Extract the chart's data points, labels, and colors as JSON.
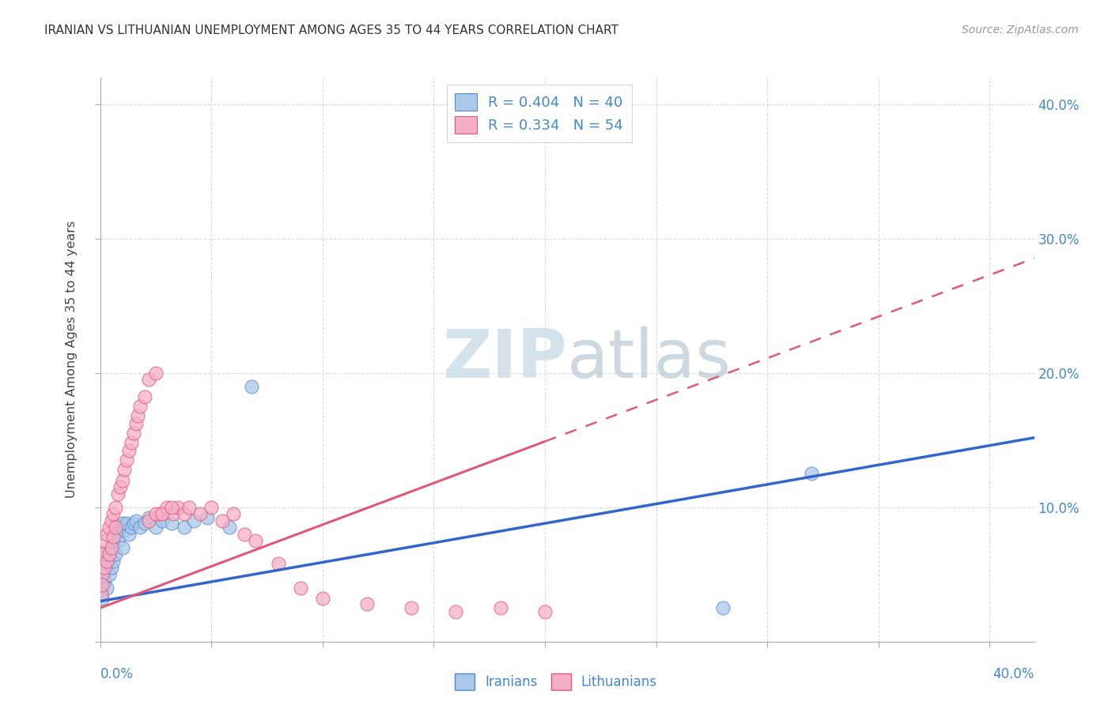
{
  "title": "IRANIAN VS LITHUANIAN UNEMPLOYMENT AMONG AGES 35 TO 44 YEARS CORRELATION CHART",
  "source": "Source: ZipAtlas.com",
  "ylabel": "Unemployment Among Ages 35 to 44 years",
  "ylim": [
    0.0,
    0.42
  ],
  "xlim": [
    0.0,
    0.42
  ],
  "yticks": [
    0.0,
    0.1,
    0.2,
    0.3,
    0.4
  ],
  "ytick_labels_right": [
    "",
    "10.0%",
    "20.0%",
    "30.0%",
    "40.0%"
  ],
  "xtick_label_left": "0.0%",
  "xtick_label_right": "40.0%",
  "iranian_fill": "#aac8e8",
  "iranian_edge": "#5588cc",
  "lithuanian_fill": "#f5b0c8",
  "lithuanian_edge": "#e05878",
  "iranian_line_color": "#3366cc",
  "lithuanian_line_color": "#e05878",
  "label_color": "#4488cc",
  "grid_color": "#cccccc",
  "watermark_color": "#ccdde8",
  "legend_R_N": [
    "R = 0.404   N = 40",
    "R = 0.334   N = 54"
  ],
  "bottom_legend": [
    "Iranians",
    "Lithuanians"
  ],
  "iranian_trend_intercept": 0.03,
  "iranian_trend_slope": 0.29,
  "lithuanian_trend_intercept": 0.025,
  "lithuanian_trend_slope": 0.62,
  "iranians_x": [
    0.0005,
    0.001,
    0.001,
    0.0015,
    0.002,
    0.002,
    0.003,
    0.003,
    0.003,
    0.004,
    0.004,
    0.005,
    0.005,
    0.006,
    0.006,
    0.007,
    0.007,
    0.008,
    0.009,
    0.01,
    0.01,
    0.011,
    0.012,
    0.013,
    0.014,
    0.015,
    0.016,
    0.018,
    0.02,
    0.022,
    0.025,
    0.028,
    0.032,
    0.038,
    0.042,
    0.048,
    0.058,
    0.068,
    0.28,
    0.32
  ],
  "iranians_y": [
    0.038,
    0.042,
    0.032,
    0.048,
    0.044,
    0.055,
    0.04,
    0.058,
    0.065,
    0.05,
    0.062,
    0.055,
    0.07,
    0.06,
    0.075,
    0.065,
    0.08,
    0.075,
    0.085,
    0.07,
    0.088,
    0.083,
    0.088,
    0.08,
    0.085,
    0.088,
    0.09,
    0.085,
    0.088,
    0.092,
    0.085,
    0.09,
    0.088,
    0.085,
    0.09,
    0.092,
    0.085,
    0.19,
    0.025,
    0.125
  ],
  "lithuanians_x": [
    0.0005,
    0.001,
    0.001,
    0.0015,
    0.002,
    0.002,
    0.003,
    0.003,
    0.004,
    0.004,
    0.005,
    0.005,
    0.006,
    0.006,
    0.007,
    0.007,
    0.008,
    0.009,
    0.01,
    0.011,
    0.012,
    0.013,
    0.014,
    0.015,
    0.016,
    0.017,
    0.018,
    0.02,
    0.022,
    0.025,
    0.027,
    0.03,
    0.033,
    0.035,
    0.038,
    0.04,
    0.045,
    0.05,
    0.055,
    0.06,
    0.065,
    0.07,
    0.08,
    0.09,
    0.1,
    0.12,
    0.14,
    0.16,
    0.18,
    0.2,
    0.022,
    0.025,
    0.028,
    0.032
  ],
  "lithuanians_y": [
    0.035,
    0.05,
    0.042,
    0.065,
    0.055,
    0.075,
    0.06,
    0.08,
    0.065,
    0.085,
    0.07,
    0.09,
    0.078,
    0.095,
    0.085,
    0.1,
    0.11,
    0.115,
    0.12,
    0.128,
    0.135,
    0.142,
    0.148,
    0.155,
    0.162,
    0.168,
    0.175,
    0.182,
    0.195,
    0.2,
    0.095,
    0.1,
    0.095,
    0.1,
    0.095,
    0.1,
    0.095,
    0.1,
    0.09,
    0.095,
    0.08,
    0.075,
    0.058,
    0.04,
    0.032,
    0.028,
    0.025,
    0.022,
    0.025,
    0.022,
    0.09,
    0.095,
    0.095,
    0.1
  ]
}
